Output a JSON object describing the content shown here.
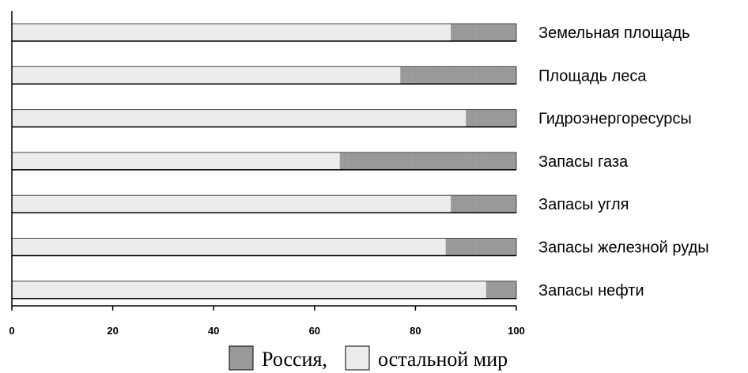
{
  "chart_data": {
    "type": "bar",
    "orientation": "horizontal",
    "stacked": true,
    "categories": [
      "Земельная площадь",
      "Площадь леса",
      "Гидроэнергоресурсы",
      "Запасы газа",
      "Запасы угля",
      "Запасы железной руды",
      "Запасы нефти"
    ],
    "series": [
      {
        "name": "остальной мир",
        "values": [
          87,
          77,
          90,
          65,
          87,
          86,
          94
        ]
      },
      {
        "name": "Россия,",
        "values": [
          13,
          23,
          10,
          35,
          13,
          14,
          6
        ]
      }
    ],
    "xlim": [
      0,
      100
    ],
    "x_ticks": [
      "0",
      "20",
      "40",
      "60",
      "80",
      "100"
    ],
    "grid": false,
    "legend_placement": "bottom-right",
    "colors": {
      "Россия,": "#a6a6a6",
      "остальной мир": "#ececec"
    }
  }
}
